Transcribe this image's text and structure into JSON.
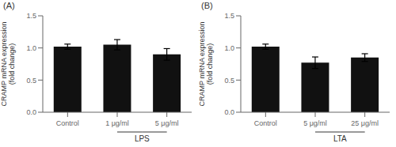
{
  "chart_data": [
    {
      "type": "bar",
      "title": "(A)",
      "categories": [
        "Control",
        "1 μg/ml",
        "5 μg/ml"
      ],
      "values": [
        1.02,
        1.05,
        0.9
      ],
      "errors": [
        0.04,
        0.08,
        0.09
      ],
      "color": "#111111",
      "ylabel": "CRAMP mRNA expression\n(fold change)",
      "ylim": [
        0,
        1.5
      ],
      "yticks": [
        {
          "value": 0,
          "label": "0.0"
        },
        0.5,
        {
          "value": 1,
          "label": "1.0"
        },
        1.5
      ],
      "annotations": [
        {
          "text": "LPS",
          "categories": [
            "1 μg/ml",
            "5 μg/ml"
          ]
        }
      ]
    },
    {
      "type": "bar",
      "title": "(B)",
      "categories": [
        "Control",
        "5 μg/ml",
        "25 μg/ml"
      ],
      "values": [
        1.02,
        0.77,
        0.85
      ],
      "errors": [
        0.04,
        0.09,
        0.06
      ],
      "color": "#111111",
      "ylabel": "CRAMP mRNA expression\n(fold change)",
      "ylim": [
        0,
        1.5
      ],
      "yticks": [
        {
          "value": 0,
          "label": "0.0"
        },
        0.5,
        {
          "value": 1,
          "label": "1.0"
        },
        1.5
      ],
      "annotations": [
        {
          "text": "LTA",
          "categories": [
            "5 μg/ml",
            "25 μg/ml"
          ]
        }
      ]
    }
  ]
}
